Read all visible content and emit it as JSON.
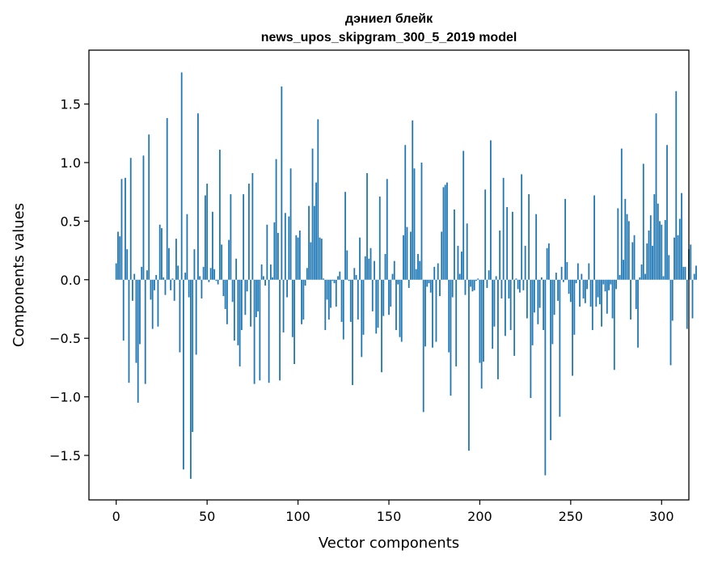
{
  "chart_data": {
    "type": "bar",
    "title_line1": "дэниел блейк",
    "title_line2": "news_upos_skipgram_300_5_2019 model",
    "xlabel": "Vector components",
    "ylabel": "Components values",
    "xlim": [
      -15,
      315
    ],
    "ylim": [
      -1.88,
      1.96
    ],
    "xticks": [
      0,
      50,
      100,
      150,
      200,
      250,
      300
    ],
    "yticks": [
      -1.5,
      -1.0,
      -0.5,
      0.0,
      0.5,
      1.0,
      1.5
    ],
    "ytick_labels": [
      "−1.5",
      "−1.0",
      "−0.5",
      "0.0",
      "0.5",
      "1.0",
      "1.5"
    ],
    "bar_color": "#1f77b4",
    "grid": false,
    "values": [
      0.14,
      0.41,
      0.37,
      0.86,
      -0.52,
      0.87,
      0.26,
      -0.88,
      1.04,
      -0.18,
      0.05,
      -0.71,
      -1.05,
      -0.55,
      0.11,
      1.06,
      -0.89,
      0.08,
      1.24,
      -0.17,
      -0.42,
      -0.09,
      0.04,
      -0.4,
      0.47,
      0.44,
      0.02,
      -0.13,
      1.38,
      0.27,
      -0.09,
      0.01,
      -0.18,
      0.35,
      0.12,
      -0.62,
      1.77,
      -1.62,
      0.06,
      0.56,
      -0.15,
      -1.7,
      -1.3,
      0.26,
      -0.64,
      1.42,
      0.03,
      -0.16,
      0.11,
      0.72,
      0.82,
      -0.02,
      0.1,
      0.58,
      0.09,
      -0.01,
      -0.04,
      1.11,
      0.3,
      -0.14,
      -0.25,
      -0.38,
      0.34,
      0.73,
      -0.19,
      -0.52,
      0.18,
      -0.56,
      -0.74,
      -0.43,
      0.73,
      -0.3,
      -0.1,
      0.82,
      -0.4,
      0.91,
      -0.89,
      -0.32,
      -0.27,
      -0.86,
      0.13,
      0.03,
      -0.05,
      0.47,
      -0.88,
      0.13,
      0.02,
      0.49,
      1.03,
      0.4,
      -0.86,
      1.65,
      -0.45,
      0.57,
      -0.15,
      0.54,
      0.95,
      -0.49,
      -0.72,
      0.38,
      0.36,
      0.42,
      -0.38,
      -0.34,
      -0.05,
      0.1,
      0.63,
      0.32,
      1.12,
      0.63,
      0.83,
      1.37,
      0.36,
      0.35,
      0.01,
      -0.43,
      -0.17,
      -0.34,
      -0.24,
      -0.01,
      -0.03,
      -0.23,
      0.03,
      0.07,
      -0.36,
      -0.51,
      0.75,
      0.25,
      -0.01,
      -0.36,
      -0.9,
      0.1,
      0.04,
      -0.34,
      0.36,
      -0.66,
      -0.47,
      0.2,
      0.91,
      0.18,
      0.27,
      -0.27,
      0.16,
      -0.46,
      -0.41,
      0.71,
      -0.79,
      -0.31,
      0.22,
      0.86,
      -0.3,
      -0.23,
      0.05,
      0.16,
      -0.43,
      -0.04,
      -0.49,
      -0.53,
      0.38,
      1.15,
      0.45,
      -0.07,
      0.41,
      1.36,
      0.95,
      0.09,
      0.22,
      0.16,
      1.0,
      -1.13,
      -0.57,
      -0.06,
      -0.03,
      -0.11,
      -0.58,
      0.11,
      -0.53,
      0.14,
      -0.14,
      0.41,
      0.79,
      0.81,
      0.83,
      -0.62,
      -0.99,
      -0.15,
      0.6,
      -0.74,
      0.29,
      0.05,
      0.24,
      1.1,
      -0.13,
      0.48,
      -1.46,
      -0.06,
      -0.1,
      -0.09,
      -0.01,
      0.01,
      -0.71,
      -0.93,
      -0.7,
      0.77,
      -0.07,
      0.08,
      1.19,
      -0.59,
      -0.4,
      0.03,
      -0.85,
      0.42,
      -0.16,
      0.87,
      -0.48,
      0.62,
      -0.16,
      -0.43,
      0.58,
      -0.65,
      0.01,
      -0.08,
      -0.11,
      0.9,
      -0.09,
      0.29,
      -0.33,
      0.73,
      -1.01,
      -0.56,
      -0.28,
      0.56,
      -0.38,
      -0.24,
      0.02,
      -0.43,
      -1.67,
      0.27,
      0.31,
      -1.37,
      -0.55,
      -0.3,
      0.06,
      -0.18,
      -1.17,
      0.11,
      -0.02,
      0.69,
      0.15,
      -0.12,
      -0.19,
      -0.82,
      -0.47,
      -0.03,
      0.14,
      -0.23,
      0.05,
      -0.16,
      -0.2,
      -0.08,
      0.14,
      -0.23,
      -0.43,
      0.72,
      -0.23,
      -0.15,
      -0.21,
      -0.4,
      -0.04,
      -0.1,
      -0.29,
      -0.09,
      -0.04,
      -0.33,
      -0.77,
      -0.08,
      0.61,
      0.04,
      1.12,
      0.17,
      0.69,
      0.56,
      0.5,
      -0.34,
      0.32,
      0.38,
      -0.25,
      -0.58,
      0.02,
      0.13,
      0.99,
      0.05,
      0.31,
      0.42,
      0.55,
      0.29,
      0.73,
      1.42,
      0.65,
      0.5,
      0.47,
      0.03,
      0.51,
      1.15,
      0.21,
      -0.73,
      -0.35,
      0.36,
      1.61,
      0.38,
      0.52,
      0.74,
      0.11,
      0.11,
      -0.42,
      0.26,
      0.3,
      -0.33,
      0.05,
      0.12
    ]
  }
}
